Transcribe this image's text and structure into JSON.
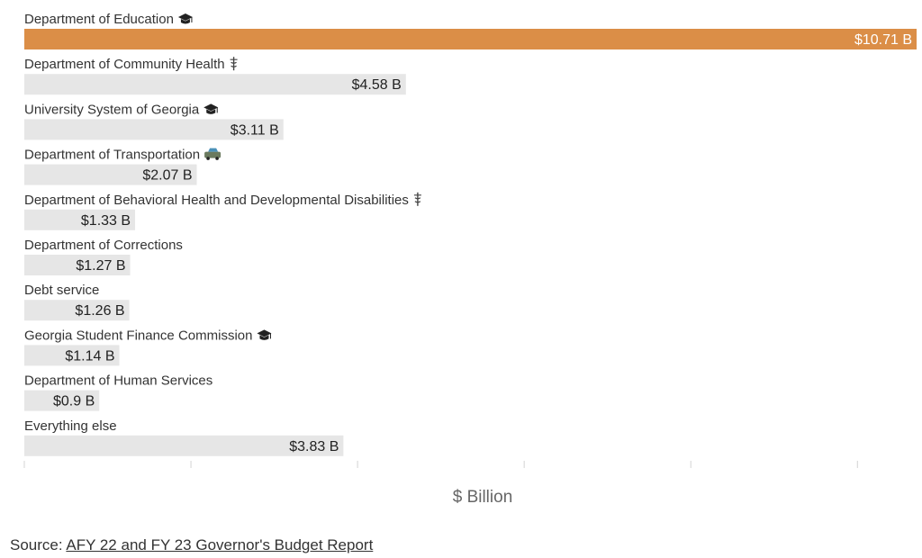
{
  "chart_data": {
    "type": "bar",
    "orientation": "horizontal",
    "categories": [
      "Department of Education",
      "Department of Community Health",
      "University System of Georgia",
      "Department of Transportation",
      "Department of Behavioral Health and Developmental Disabilities",
      "Department of Corrections",
      "Debt service",
      "Georgia Student Finance Commission",
      "Department of Human Services",
      "Everything else"
    ],
    "icons": [
      "graduation-cap-icon",
      "medical-caduceus-icon",
      "graduation-cap-icon",
      "car-icon",
      "medical-caduceus-icon",
      "",
      "",
      "graduation-cap-icon",
      "",
      ""
    ],
    "values": [
      10.71,
      4.58,
      3.11,
      2.07,
      1.33,
      1.27,
      1.26,
      1.14,
      0.9,
      3.83
    ],
    "value_labels": [
      "$10.71 B",
      "$4.58 B",
      "$3.11 B",
      "$2.07 B",
      "$1.33 B",
      "$1.27 B",
      "$1.26 B",
      "$1.14 B",
      "$0.9 B",
      "$3.83 B"
    ],
    "xlabel": "$ Billion",
    "xlim": [
      0,
      10.71
    ],
    "highlight_color": "#db8e47",
    "bar_color": "#e6e6e6",
    "grid": false
  },
  "source": {
    "prefix": "Source: ",
    "link_text": "AFY 22 and FY 23 Governor's Budget Report"
  }
}
